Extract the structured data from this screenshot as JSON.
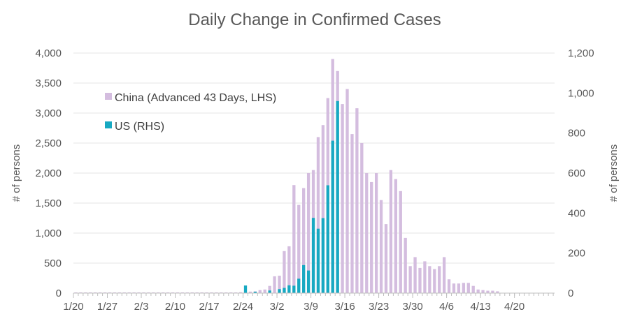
{
  "chart_data": {
    "type": "bar",
    "title": "Daily Change in Confirmed Cases",
    "xlabel": "",
    "ylabel_left": "# of persons",
    "ylabel_right": "# of persons",
    "ylim_left": [
      0,
      4000
    ],
    "ylim_right": [
      0,
      1200
    ],
    "yticks_left": [
      "0",
      "500",
      "1,000",
      "1,500",
      "2,000",
      "2,500",
      "3,000",
      "3,500",
      "4,000"
    ],
    "yticks_right": [
      "0",
      "200",
      "400",
      "600",
      "800",
      "1,000",
      "1,200"
    ],
    "grid": true,
    "legend_position": "top-left",
    "start_date": "1/20",
    "x_tick_labels": [
      "1/20",
      "1/27",
      "2/3",
      "2/10",
      "2/17",
      "2/24",
      "3/2",
      "3/9",
      "3/16",
      "3/23",
      "3/30",
      "4/6",
      "4/13",
      "4/20"
    ],
    "series": [
      {
        "name": "China (Advanced 43 Days, LHS)",
        "axis": "left",
        "color": "#d4bddf",
        "start_date": "2/20",
        "values": [
          3,
          10,
          6,
          15,
          20,
          25,
          30,
          50,
          60,
          120,
          280,
          290,
          700,
          780,
          1800,
          1470,
          1750,
          2000,
          2050,
          2600,
          2800,
          3250,
          3900,
          3700,
          3150,
          3400,
          2650,
          3080,
          2500,
          2000,
          1850,
          2000,
          1550,
          1150,
          2050,
          1900,
          1700,
          920,
          450,
          600,
          420,
          530,
          450,
          400,
          450,
          600,
          230,
          160,
          160,
          170,
          170,
          120,
          60,
          50,
          40,
          40,
          30
        ]
      },
      {
        "name": "US (RHS)",
        "axis": "right",
        "color": "#17a9c2",
        "start_date": "2/20",
        "values": [
          0,
          0,
          0,
          0,
          38,
          0,
          7,
          0,
          0,
          13,
          0,
          20,
          26,
          39,
          37,
          72,
          140,
          113,
          376,
          322,
          375,
          539,
          762,
          960,
          0,
          0,
          0,
          0,
          0,
          0,
          0,
          0,
          0,
          0,
          0,
          0,
          0,
          0,
          0,
          0,
          0,
          0,
          0,
          0,
          0,
          0,
          0,
          0,
          0,
          0,
          0,
          0,
          0,
          0,
          0,
          0,
          0
        ]
      }
    ]
  }
}
